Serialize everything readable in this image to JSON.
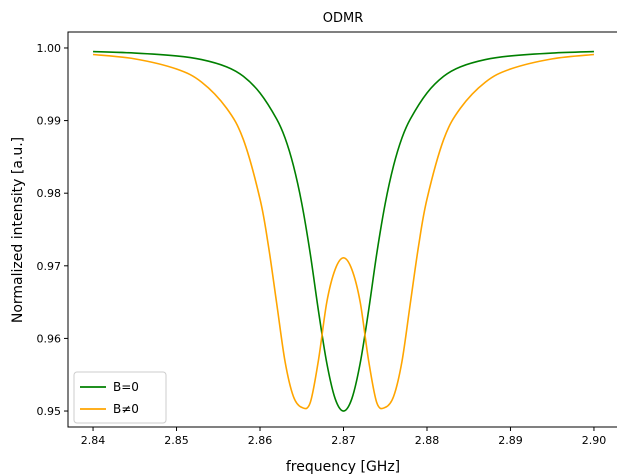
{
  "chart_data": {
    "type": "line",
    "title": "ODMR",
    "xlabel": "frequency [GHz]",
    "ylabel": "Normalized intensity [a.u.]",
    "xlim": [
      2.837,
      2.903
    ],
    "ylim": [
      0.9478,
      1.0022
    ],
    "x_ticks": [
      "2.84",
      "2.85",
      "2.86",
      "2.87",
      "2.88",
      "2.89",
      "2.90"
    ],
    "y_ticks": [
      "0.95",
      "0.96",
      "0.97",
      "0.98",
      "0.99",
      "1.00"
    ],
    "grid": false,
    "legend_position": "lower left",
    "series": [
      {
        "name": "B=0",
        "color": "#008000",
        "x": [
          2.84,
          2.845,
          2.85,
          2.853,
          2.856,
          2.858,
          2.86,
          2.862,
          2.863,
          2.864,
          2.865,
          2.866,
          2.867,
          2.868,
          2.869,
          2.87,
          2.871,
          2.872,
          2.873,
          2.874,
          2.875,
          2.876,
          2.877,
          2.878,
          2.88,
          2.882,
          2.884,
          2.887,
          2.89,
          2.895,
          2.9
        ],
        "y": [
          0.9995,
          0.9993,
          0.9989,
          0.9984,
          0.9974,
          0.9961,
          0.9938,
          0.9902,
          0.9876,
          0.9838,
          0.9786,
          0.9718,
          0.9638,
          0.9566,
          0.9517,
          0.95,
          0.9517,
          0.9566,
          0.9638,
          0.9718,
          0.9786,
          0.9838,
          0.9876,
          0.9902,
          0.9938,
          0.9961,
          0.9974,
          0.9984,
          0.9989,
          0.9993,
          0.9995
        ]
      },
      {
        "name": "B≠0",
        "color": "#ffa500",
        "x": [
          2.84,
          2.845,
          2.85,
          2.853,
          2.856,
          2.858,
          2.86,
          2.861,
          2.862,
          2.863,
          2.864,
          2.865,
          2.866,
          2.867,
          2.868,
          2.869,
          2.87,
          2.871,
          2.872,
          2.873,
          2.874,
          2.875,
          2.876,
          2.877,
          2.878,
          2.879,
          2.88,
          2.882,
          2.884,
          2.887,
          2.89,
          2.895,
          2.9
        ],
        "y": [
          0.9991,
          0.9985,
          0.9971,
          0.9953,
          0.9917,
          0.9874,
          0.9792,
          0.9728,
          0.9648,
          0.9568,
          0.952,
          0.9505,
          0.9511,
          0.957,
          0.965,
          0.9695,
          0.9711,
          0.9695,
          0.965,
          0.957,
          0.9511,
          0.9505,
          0.952,
          0.9568,
          0.9648,
          0.9728,
          0.9792,
          0.9874,
          0.9917,
          0.9953,
          0.9971,
          0.9985,
          0.9991
        ]
      }
    ]
  }
}
